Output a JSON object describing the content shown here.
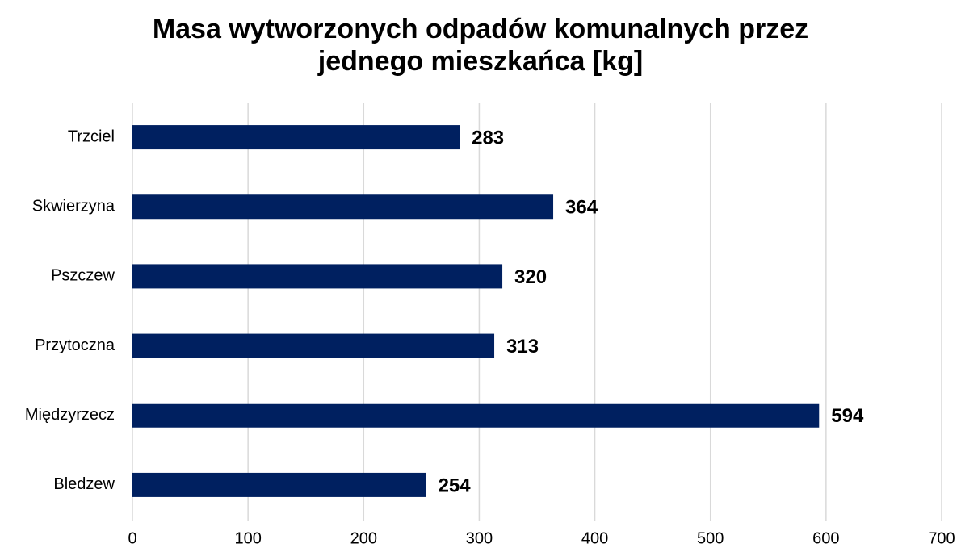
{
  "chart_data": {
    "type": "bar",
    "orientation": "horizontal",
    "title": "Masa wytworzonych odpadów komunalnych przez jednego mieszkańca [kg]",
    "categories": [
      "Trzciel",
      "Skwierzyna",
      "Pszczew",
      "Przytoczna",
      "Międzyrzecz",
      "Bledzew"
    ],
    "values": [
      283,
      364,
      320,
      313,
      594,
      254
    ],
    "color": "#002060",
    "xlim": [
      0,
      700
    ],
    "xticks": [
      0,
      100,
      200,
      300,
      400,
      500,
      600,
      700
    ],
    "grid": true
  }
}
